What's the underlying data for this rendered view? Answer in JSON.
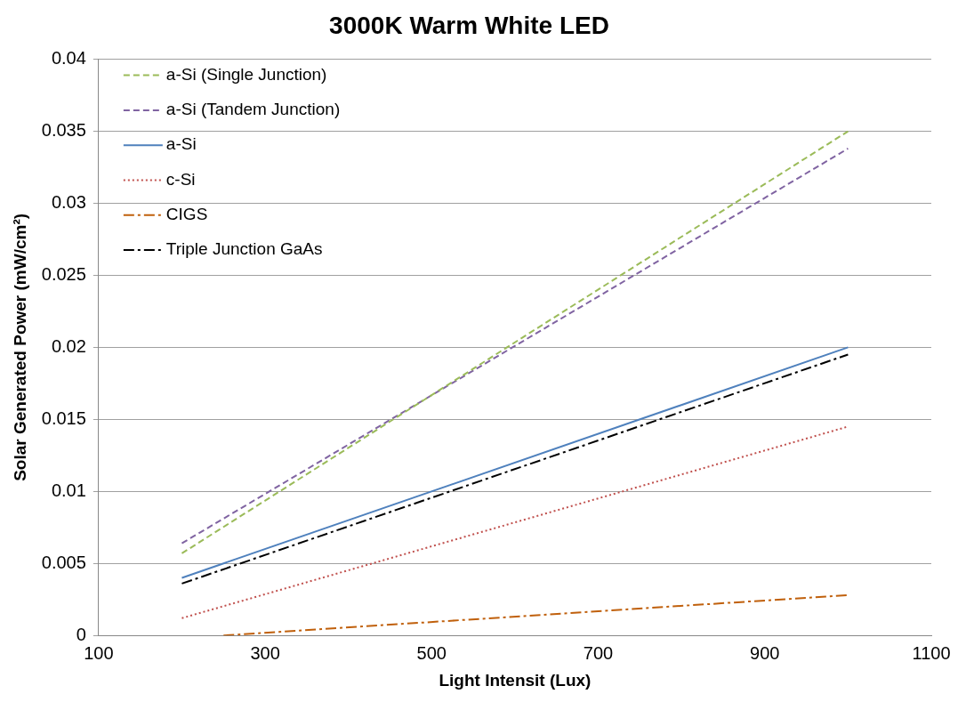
{
  "chart_data": {
    "type": "line",
    "title": "3000K Warm White LED",
    "xlabel": "Light Intensit (Lux)",
    "ylabel": "Solar Generated Power (mW/cm²)",
    "xlim": [
      100,
      1100
    ],
    "xticks": [
      100,
      300,
      500,
      700,
      900,
      1100
    ],
    "ylim": [
      0,
      0.04
    ],
    "yticks": [
      0,
      0.005,
      0.01,
      0.015,
      0.02,
      0.025,
      0.03,
      0.035,
      0.04
    ],
    "grid": "y",
    "legend": "top left",
    "marker": "none",
    "series": [
      {
        "name": "a-Si (Single Junction)",
        "color": "#9bbb59",
        "line_style": "dashed",
        "x": [
          200,
          1000
        ],
        "values": [
          0.0057,
          0.035
        ]
      },
      {
        "name": "a-Si (Tandem Junction)",
        "color": "#8064a2",
        "line_style": "dashed",
        "x": [
          200,
          1000
        ],
        "values": [
          0.0064,
          0.0338
        ]
      },
      {
        "name": "a-Si",
        "color": "#4f81bd",
        "line_style": "solid",
        "x": [
          200,
          1000
        ],
        "values": [
          0.004,
          0.02
        ]
      },
      {
        "name": "c-Si",
        "color": "#c0504d",
        "line_style": "dotted",
        "x": [
          200,
          1000
        ],
        "values": [
          0.0012,
          0.0145
        ]
      },
      {
        "name": "CIGS",
        "color": "#c0600c",
        "line_style": "dashed",
        "x": [
          250,
          1000
        ],
        "values": [
          0,
          0.0028
        ]
      },
      {
        "name": "Triple Junction GaAs",
        "color": "#000000",
        "line_style": "dashed",
        "x": [
          200,
          1000
        ],
        "values": [
          0.0036,
          0.0195
        ]
      }
    ]
  }
}
